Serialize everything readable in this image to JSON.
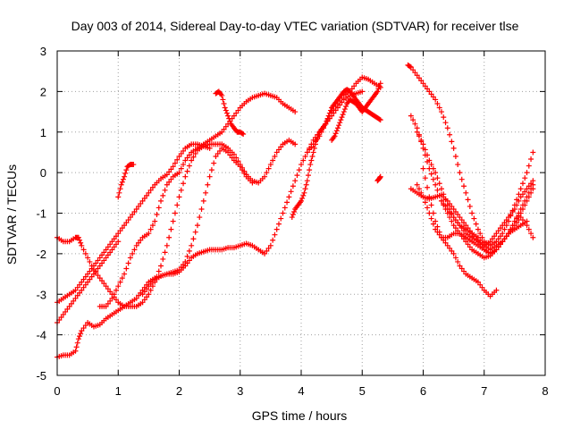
{
  "chart_data": {
    "type": "scatter",
    "title": "Day 003 of 2014, Sidereal Day-to-day VTEC variation (SDTVAR) for receiver tlse",
    "xlabel": "GPS time / hours",
    "ylabel": "SDTVAR / TECUs",
    "xlim": [
      0,
      8
    ],
    "ylim": [
      -5,
      3
    ],
    "x_ticks": [
      0,
      1,
      2,
      3,
      4,
      5,
      6,
      7,
      8
    ],
    "y_ticks": [
      -5,
      -4,
      -3,
      -2,
      -1,
      0,
      1,
      2,
      3
    ],
    "grid": true,
    "marker": "+",
    "color": "#ff0000",
    "series": [
      {
        "x": [
          0.0,
          0.1,
          0.2,
          0.3,
          0.4,
          0.5,
          0.6,
          0.7,
          0.8,
          0.9,
          1.0
        ],
        "y": [
          -3.7,
          -3.5,
          -3.3,
          -3.1,
          -2.9,
          -2.7,
          -2.5,
          -2.3,
          -2.1,
          -1.9,
          -1.7
        ]
      },
      {
        "x": [
          0.0,
          0.1,
          0.2,
          0.3,
          0.35,
          0.4,
          0.5,
          0.6,
          0.7,
          0.8,
          0.9,
          1.0,
          1.1,
          1.2,
          1.3,
          1.4,
          1.5,
          1.6,
          1.7,
          1.8,
          1.9,
          2.0,
          2.1,
          2.2,
          2.3,
          2.4,
          2.5,
          2.6,
          2.7,
          2.8,
          2.9,
          3.0,
          3.1,
          3.2,
          3.3,
          3.4,
          3.5,
          3.6,
          3.7,
          3.8,
          3.9
        ],
        "y": [
          -1.6,
          -1.7,
          -1.7,
          -1.6,
          -1.6,
          -1.8,
          -2.1,
          -2.4,
          -2.6,
          -2.8,
          -3.0,
          -3.2,
          -3.3,
          -3.3,
          -3.3,
          -3.2,
          -3.0,
          -2.7,
          -2.3,
          -1.8,
          -1.2,
          -0.6,
          -0.1,
          0.3,
          0.55,
          0.65,
          0.7,
          0.7,
          0.7,
          0.6,
          0.45,
          0.2,
          -0.05,
          -0.2,
          -0.25,
          -0.1,
          0.2,
          0.5,
          0.7,
          0.8,
          0.7
        ]
      },
      {
        "x": [
          0.0,
          0.1,
          0.2,
          0.3,
          0.4,
          0.5,
          0.6,
          0.7,
          0.8,
          0.9,
          1.0,
          1.1,
          1.2,
          1.3,
          1.4,
          1.5,
          1.6,
          1.7,
          1.8,
          1.9,
          2.0,
          2.1,
          2.2,
          2.3,
          2.4,
          2.5
        ],
        "y": [
          -3.2,
          -3.1,
          -3.0,
          -2.9,
          -2.7,
          -2.5,
          -2.3,
          -2.1,
          -1.9,
          -1.7,
          -1.5,
          -1.3,
          -1.1,
          -0.9,
          -0.7,
          -0.5,
          -0.3,
          -0.15,
          -0.05,
          0.15,
          0.4,
          0.6,
          0.7,
          0.7,
          0.65,
          0.6
        ]
      },
      {
        "x": [
          0.7,
          0.8,
          0.9,
          1.0,
          1.1,
          1.2,
          1.3,
          1.4,
          1.5,
          1.6,
          1.7,
          1.8,
          1.9,
          2.0,
          2.1,
          2.2,
          2.3,
          2.4,
          2.5,
          2.6,
          2.7,
          2.8,
          2.9,
          3.0,
          3.1,
          3.2,
          3.3,
          3.4,
          3.5,
          3.6,
          3.7,
          3.8,
          3.9
        ],
        "y": [
          -3.3,
          -3.3,
          -3.1,
          -2.8,
          -2.5,
          -2.1,
          -1.8,
          -1.6,
          -1.5,
          -1.2,
          -0.7,
          -0.3,
          -0.1,
          0.0,
          0.3,
          0.5,
          0.6,
          0.7,
          0.8,
          0.9,
          1.0,
          1.2,
          1.4,
          1.6,
          1.75,
          1.85,
          1.9,
          1.95,
          1.9,
          1.85,
          1.7,
          1.6,
          1.5
        ]
      },
      {
        "x": [
          0.0,
          0.1,
          0.2,
          0.3,
          0.35,
          0.4,
          0.5,
          0.6,
          0.7,
          0.8,
          0.9,
          1.0,
          1.1,
          1.2,
          1.3,
          1.4,
          1.5,
          1.6,
          1.7,
          1.8,
          1.9,
          2.0,
          2.1,
          2.2,
          2.3,
          2.4,
          2.5,
          2.6,
          2.7,
          2.8,
          2.9,
          3.0,
          3.1,
          3.2,
          3.3,
          3.4,
          3.5,
          3.6,
          3.7,
          3.8,
          3.9,
          4.0,
          4.1,
          4.2,
          4.3,
          4.4,
          4.5,
          4.6,
          4.7,
          4.8,
          4.9,
          5.0
        ],
        "y": [
          -4.55,
          -4.5,
          -4.5,
          -4.4,
          -4.1,
          -3.9,
          -3.7,
          -3.8,
          -3.75,
          -3.6,
          -3.5,
          -3.4,
          -3.3,
          -3.2,
          -3.1,
          -2.9,
          -2.7,
          -2.6,
          -2.55,
          -2.5,
          -2.5,
          -2.45,
          -2.3,
          -2.1,
          -2.0,
          -1.95,
          -1.9,
          -1.9,
          -1.9,
          -1.85,
          -1.85,
          -1.8,
          -1.75,
          -1.8,
          -1.9,
          -2.0,
          -1.8,
          -1.4,
          -1.0,
          -0.6,
          -0.2,
          0.2,
          0.5,
          0.8,
          1.0,
          1.2,
          1.4,
          1.6,
          1.8,
          1.9,
          1.95,
          2.0
        ]
      },
      {
        "x": [
          1.0,
          1.05,
          1.1,
          1.15,
          1.2,
          1.25
        ],
        "y": [
          -0.6,
          -0.3,
          -0.1,
          0.15,
          0.2,
          0.2
        ]
      },
      {
        "x": [
          1.4,
          1.5,
          1.6,
          1.7,
          1.8,
          1.9,
          2.0,
          2.1,
          2.2,
          2.3,
          2.4,
          2.5,
          2.6,
          2.7,
          2.8,
          2.9,
          3.0,
          3.1,
          3.2
        ],
        "y": [
          -3.0,
          -2.8,
          -2.65,
          -2.55,
          -2.5,
          -2.45,
          -2.4,
          -2.2,
          -1.8,
          -1.3,
          -0.7,
          -0.1,
          0.4,
          0.6,
          0.5,
          0.3,
          0.15,
          -0.1,
          -0.25
        ]
      },
      {
        "x": [
          2.6,
          2.65,
          2.7,
          2.75,
          2.8,
          2.85,
          2.9,
          2.95,
          3.0,
          3.05
        ],
        "y": [
          1.95,
          2.0,
          1.9,
          1.6,
          1.4,
          1.2,
          1.1,
          1.0,
          1.0,
          0.95
        ]
      },
      {
        "x": [
          3.85,
          3.9,
          3.95,
          4.0,
          4.05,
          4.1,
          4.15,
          4.2,
          4.25,
          4.3,
          4.35,
          4.4,
          4.45,
          4.5,
          4.55,
          4.6,
          4.65,
          4.7,
          4.75,
          4.8,
          4.85,
          4.9,
          4.95,
          5.0,
          5.05,
          5.1,
          5.15,
          5.2,
          5.25,
          5.3
        ],
        "y": [
          -1.1,
          -0.9,
          -0.8,
          -0.7,
          -0.5,
          -0.2,
          0.2,
          0.5,
          0.8,
          1.0,
          1.1,
          1.2,
          1.4,
          1.6,
          1.7,
          1.8,
          1.9,
          2.0,
          2.05,
          2.0,
          1.9,
          1.8,
          1.7,
          1.6,
          1.55,
          1.5,
          1.45,
          1.4,
          1.35,
          1.3
        ]
      },
      {
        "x": [
          4.1,
          4.2,
          4.3,
          4.4,
          4.5,
          4.6,
          4.7,
          4.8,
          4.9,
          5.0,
          5.1,
          5.2,
          5.3
        ],
        "y": [
          0.5,
          0.7,
          0.9,
          1.2,
          1.5,
          1.7,
          1.9,
          2.0,
          2.2,
          2.35,
          2.3,
          2.2,
          2.1
        ]
      },
      {
        "x": [
          4.5,
          4.55,
          4.6,
          4.65,
          4.7,
          4.75,
          4.8,
          4.85,
          4.9,
          4.95,
          5.0,
          5.05,
          5.1,
          5.15,
          5.2,
          5.25,
          5.3
        ],
        "y": [
          0.8,
          0.9,
          1.1,
          1.3,
          1.5,
          1.7,
          1.8,
          1.75,
          1.7,
          1.6,
          1.5,
          1.6,
          1.7,
          1.8,
          1.9,
          2.0,
          2.2
        ]
      },
      {
        "x": [
          5.25,
          5.28,
          5.3
        ],
        "y": [
          -0.2,
          -0.15,
          -0.1
        ]
      },
      {
        "x": [
          5.75,
          5.8,
          5.9,
          6.0,
          6.1,
          6.2,
          6.3,
          6.4,
          6.5,
          6.6,
          6.7,
          6.8,
          6.9,
          7.0,
          7.1,
          7.2,
          7.3,
          7.4,
          7.5,
          7.6,
          7.7,
          7.8
        ],
        "y": [
          2.65,
          2.6,
          2.4,
          2.2,
          2.0,
          1.8,
          1.5,
          1.1,
          0.6,
          0.0,
          -0.5,
          -1.0,
          -1.4,
          -1.7,
          -1.8,
          -1.7,
          -1.5,
          -1.2,
          -0.8,
          -0.4,
          0.0,
          0.5
        ]
      },
      {
        "x": [
          5.8,
          5.9,
          6.0,
          6.1,
          6.2,
          6.3,
          6.4,
          6.5,
          6.6,
          6.7,
          6.8,
          6.9,
          7.0,
          7.1,
          7.2,
          7.3,
          7.4,
          7.5,
          7.6,
          7.7,
          7.8
        ],
        "y": [
          1.4,
          1.1,
          0.6,
          0.1,
          -0.3,
          -0.7,
          -1.0,
          -1.3,
          -1.5,
          -1.7,
          -1.9,
          -2.0,
          -2.1,
          -2.05,
          -1.9,
          -1.7,
          -1.5,
          -1.2,
          -0.9,
          -0.6,
          -0.3
        ]
      },
      {
        "x": [
          5.9,
          6.0,
          6.1,
          6.2,
          6.3,
          6.4,
          6.5,
          6.6,
          6.7,
          6.8,
          6.9,
          7.0,
          7.1,
          7.2,
          7.3,
          7.4,
          7.5,
          7.6,
          7.7,
          7.8
        ],
        "y": [
          1.0,
          0.7,
          0.3,
          0.0,
          -0.4,
          -0.8,
          -1.1,
          -1.3,
          -1.5,
          -1.6,
          -1.7,
          -1.8,
          -1.7,
          -1.5,
          -1.3,
          -1.1,
          -0.9,
          -0.6,
          -0.4,
          -0.2
        ]
      },
      {
        "x": [
          5.8,
          5.9,
          6.0,
          6.1,
          6.2,
          6.3,
          6.4,
          6.5,
          6.6,
          6.7,
          6.8,
          6.9,
          7.0,
          7.1,
          7.2,
          7.3,
          7.4,
          7.5,
          7.6,
          7.7
        ],
        "y": [
          -0.4,
          -0.5,
          -0.6,
          -0.65,
          -0.6,
          -0.55,
          -0.7,
          -0.9,
          -1.1,
          -1.3,
          -1.5,
          -1.7,
          -1.9,
          -2.0,
          -1.9,
          -1.7,
          -1.5,
          -1.4,
          -1.3,
          -1.2
        ]
      },
      {
        "x": [
          5.9,
          6.0,
          6.1,
          6.2,
          6.3,
          6.4,
          6.5,
          6.6,
          6.7,
          6.8,
          6.9,
          7.0,
          7.1,
          7.2
        ],
        "y": [
          -0.3,
          -0.6,
          -1.0,
          -1.4,
          -1.6,
          -1.8,
          -2.0,
          -2.3,
          -2.5,
          -2.6,
          -2.7,
          -2.9,
          -3.05,
          -2.9
        ]
      },
      {
        "x": [
          6.0,
          6.1,
          6.2,
          6.3,
          6.4,
          6.5,
          6.6,
          6.7,
          6.8,
          6.9,
          7.0,
          7.1,
          7.2,
          7.3,
          7.4,
          7.5,
          7.6,
          7.7,
          7.8
        ],
        "y": [
          0.1,
          -0.6,
          -1.2,
          -1.6,
          -1.6,
          -1.5,
          -1.5,
          -1.6,
          -1.7,
          -1.8,
          -1.9,
          -2.0,
          -1.9,
          -1.7,
          -1.5,
          -1.2,
          -1.0,
          -0.7,
          -0.4
        ]
      },
      {
        "x": [
          6.3,
          6.4,
          6.5,
          6.6,
          6.7,
          6.8,
          6.9,
          7.0,
          7.1,
          7.2,
          7.3,
          7.4,
          7.5,
          7.6,
          7.7,
          7.8
        ],
        "y": [
          -0.7,
          -0.9,
          -1.1,
          -1.3,
          -1.4,
          -1.5,
          -1.6,
          -1.8,
          -1.9,
          -1.8,
          -1.7,
          -1.5,
          -1.3,
          -1.1,
          -1.3,
          -1.6
        ]
      }
    ]
  }
}
